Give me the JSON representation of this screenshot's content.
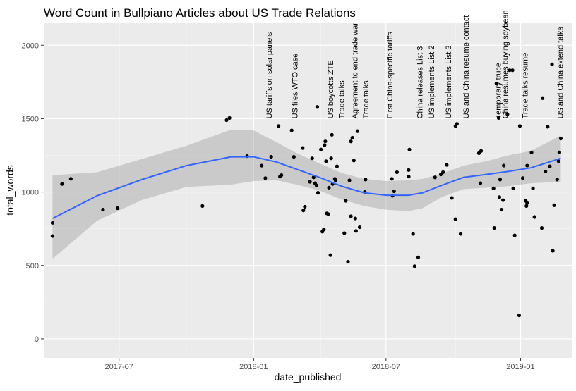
{
  "chart_data": {
    "type": "scatter",
    "title": "Word Count in Bullpiano Articles about US Trade Relations",
    "xlabel": "date_published",
    "ylabel": "total_words",
    "x_range": [
      "2017-03-20",
      "2019-03-12"
    ],
    "ylim": [
      -130,
      2150
    ],
    "x_ticks": [
      {
        "date": "2017-07-01",
        "label": "2017-07"
      },
      {
        "date": "2018-01-01",
        "label": "2018-01"
      },
      {
        "date": "2018-07-01",
        "label": "2018-07"
      },
      {
        "date": "2019-01-01",
        "label": "2019-01"
      }
    ],
    "y_ticks": [
      0,
      500,
      1000,
      1500,
      2000
    ],
    "grid": true,
    "panel_background": "#ebebeb",
    "point_color": "#000000",
    "smooth_color": "#3366ff",
    "ribbon_color": "#999999",
    "annotations": [
      {
        "date": "2018-01-22",
        "label": "US tariffs on solar panels"
      },
      {
        "date": "2018-02-26",
        "label": "US files WTO case"
      },
      {
        "date": "2018-04-16",
        "label": "US boycotts ZTE"
      },
      {
        "date": "2018-05-01",
        "label": "Trade talks"
      },
      {
        "date": "2018-05-19",
        "label": "Agreement to end trade war"
      },
      {
        "date": "2018-06-03",
        "label": "Trade talks"
      },
      {
        "date": "2018-07-06",
        "label": "First China-specific tariffs"
      },
      {
        "date": "2018-08-16",
        "label": "China releases List 3"
      },
      {
        "date": "2018-09-01",
        "label": "US implements List 2"
      },
      {
        "date": "2018-09-24",
        "label": "US implements List 3"
      },
      {
        "date": "2018-10-18",
        "label": "US and China resume contact"
      },
      {
        "date": "2018-12-01",
        "label": "Temporary truce"
      },
      {
        "date": "2018-12-11",
        "label": "China resumes buying soybean"
      },
      {
        "date": "2019-01-07",
        "label": "Trade talks resume"
      },
      {
        "date": "2019-02-24",
        "label": "US and China extend talks"
      }
    ],
    "points": [
      {
        "x": "2017-04-01",
        "y": 790
      },
      {
        "x": "2017-04-01",
        "y": 700
      },
      {
        "x": "2017-04-14",
        "y": 1055
      },
      {
        "x": "2017-04-26",
        "y": 1090
      },
      {
        "x": "2017-06-09",
        "y": 880
      },
      {
        "x": "2017-06-29",
        "y": 890
      },
      {
        "x": "2017-10-23",
        "y": 905
      },
      {
        "x": "2017-11-25",
        "y": 1490
      },
      {
        "x": "2017-11-29",
        "y": 1505
      },
      {
        "x": "2017-12-23",
        "y": 1245
      },
      {
        "x": "2018-01-12",
        "y": 1180
      },
      {
        "x": "2018-01-17",
        "y": 1095
      },
      {
        "x": "2018-01-25",
        "y": 1240
      },
      {
        "x": "2018-02-04",
        "y": 1450
      },
      {
        "x": "2018-02-06",
        "y": 1105
      },
      {
        "x": "2018-02-08",
        "y": 1115
      },
      {
        "x": "2018-02-25",
        "y": 1240
      },
      {
        "x": "2018-02-22",
        "y": 1420
      },
      {
        "x": "2018-03-10",
        "y": 875
      },
      {
        "x": "2018-03-12",
        "y": 900
      },
      {
        "x": "2018-03-09",
        "y": 1300
      },
      {
        "x": "2018-03-19",
        "y": 1070
      },
      {
        "x": "2018-03-22",
        "y": 1230
      },
      {
        "x": "2018-03-24",
        "y": 1100
      },
      {
        "x": "2018-03-26",
        "y": 1060
      },
      {
        "x": "2018-03-28",
        "y": 1045
      },
      {
        "x": "2018-03-29",
        "y": 1580
      },
      {
        "x": "2018-03-30",
        "y": 995
      },
      {
        "x": "2018-04-03",
        "y": 1290
      },
      {
        "x": "2018-04-05",
        "y": 730
      },
      {
        "x": "2018-04-07",
        "y": 745
      },
      {
        "x": "2018-04-08",
        "y": 1320
      },
      {
        "x": "2018-04-09",
        "y": 1345
      },
      {
        "x": "2018-04-10",
        "y": 1210
      },
      {
        "x": "2018-04-11",
        "y": 855
      },
      {
        "x": "2018-04-13",
        "y": 850
      },
      {
        "x": "2018-04-14",
        "y": 1030
      },
      {
        "x": "2018-04-16",
        "y": 570
      },
      {
        "x": "2018-04-17",
        "y": 1230
      },
      {
        "x": "2018-04-18",
        "y": 1390
      },
      {
        "x": "2018-04-19",
        "y": 1055
      },
      {
        "x": "2018-04-22",
        "y": 1090
      },
      {
        "x": "2018-04-23",
        "y": 1080
      },
      {
        "x": "2018-04-25",
        "y": 1175
      },
      {
        "x": "2018-05-05",
        "y": 720
      },
      {
        "x": "2018-05-07",
        "y": 940
      },
      {
        "x": "2018-05-12",
        "y": 1080
      },
      {
        "x": "2018-05-10",
        "y": 525
      },
      {
        "x": "2018-05-14",
        "y": 835
      },
      {
        "x": "2018-05-14",
        "y": 1345
      },
      {
        "x": "2018-05-16",
        "y": 1370
      },
      {
        "x": "2018-05-18",
        "y": 1215
      },
      {
        "x": "2018-05-20",
        "y": 820
      },
      {
        "x": "2018-05-21",
        "y": 735
      },
      {
        "x": "2018-05-23",
        "y": 1415
      },
      {
        "x": "2018-05-26",
        "y": 760
      },
      {
        "x": "2018-06-02",
        "y": 1000
      },
      {
        "x": "2018-06-03",
        "y": 1085
      },
      {
        "x": "2018-07-09",
        "y": 1090
      },
      {
        "x": "2018-07-10",
        "y": 975
      },
      {
        "x": "2018-07-12",
        "y": 1005
      },
      {
        "x": "2018-07-16",
        "y": 1135
      },
      {
        "x": "2018-08-01",
        "y": 1150
      },
      {
        "x": "2018-08-01",
        "y": 1105
      },
      {
        "x": "2018-08-02",
        "y": 1290
      },
      {
        "x": "2018-08-07",
        "y": 715
      },
      {
        "x": "2018-08-09",
        "y": 495
      },
      {
        "x": "2018-08-14",
        "y": 555
      },
      {
        "x": "2018-09-06",
        "y": 1100
      },
      {
        "x": "2018-09-14",
        "y": 1120
      },
      {
        "x": "2018-09-17",
        "y": 1135
      },
      {
        "x": "2018-09-22",
        "y": 1185
      },
      {
        "x": "2018-09-29",
        "y": 960
      },
      {
        "x": "2018-10-04",
        "y": 815
      },
      {
        "x": "2018-10-04",
        "y": 1450
      },
      {
        "x": "2018-10-06",
        "y": 1465
      },
      {
        "x": "2018-10-11",
        "y": 715
      },
      {
        "x": "2018-11-05",
        "y": 1265
      },
      {
        "x": "2018-11-08",
        "y": 1280
      },
      {
        "x": "2018-11-07",
        "y": 1060
      },
      {
        "x": "2018-11-25",
        "y": 1025
      },
      {
        "x": "2018-11-26",
        "y": 755
      },
      {
        "x": "2018-11-29",
        "y": 1740
      },
      {
        "x": "2018-12-02",
        "y": 1505
      },
      {
        "x": "2018-12-03",
        "y": 965
      },
      {
        "x": "2018-12-04",
        "y": 1085
      },
      {
        "x": "2018-12-06",
        "y": 880
      },
      {
        "x": "2018-12-08",
        "y": 945
      },
      {
        "x": "2018-12-09",
        "y": 1180
      },
      {
        "x": "2018-12-14",
        "y": 1530
      },
      {
        "x": "2018-12-17",
        "y": 1830
      },
      {
        "x": "2018-12-21",
        "y": 1830
      },
      {
        "x": "2018-12-22",
        "y": 1025
      },
      {
        "x": "2018-12-24",
        "y": 705
      },
      {
        "x": "2018-12-30",
        "y": 160
      },
      {
        "x": "2018-12-31",
        "y": 1450
      },
      {
        "x": "2019-01-04",
        "y": 1095
      },
      {
        "x": "2019-01-08",
        "y": 940
      },
      {
        "x": "2019-01-09",
        "y": 905
      },
      {
        "x": "2019-01-10",
        "y": 925
      },
      {
        "x": "2019-01-10",
        "y": 1180
      },
      {
        "x": "2019-01-16",
        "y": 1270
      },
      {
        "x": "2019-01-18",
        "y": 1025
      },
      {
        "x": "2019-01-20",
        "y": 830
      },
      {
        "x": "2019-01-30",
        "y": 755
      },
      {
        "x": "2019-01-31",
        "y": 1640
      },
      {
        "x": "2019-02-04",
        "y": 1140
      },
      {
        "x": "2019-02-07",
        "y": 1445
      },
      {
        "x": "2019-02-10",
        "y": 1175
      },
      {
        "x": "2019-02-13",
        "y": 1870
      },
      {
        "x": "2019-02-14",
        "y": 600
      },
      {
        "x": "2019-02-16",
        "y": 910
      },
      {
        "x": "2019-02-20",
        "y": 1085
      },
      {
        "x": "2019-02-22",
        "y": 1210
      },
      {
        "x": "2019-02-23",
        "y": 1270
      },
      {
        "x": "2019-02-25",
        "y": 1365
      }
    ],
    "smooth": {
      "x": [
        "2017-04-01",
        "2017-06-01",
        "2017-08-01",
        "2017-10-01",
        "2017-12-01",
        "2018-01-01",
        "2018-02-01",
        "2018-03-01",
        "2018-04-01",
        "2018-05-01",
        "2018-06-01",
        "2018-07-01",
        "2018-08-01",
        "2018-08-20",
        "2018-09-15",
        "2018-10-15",
        "2018-11-15",
        "2018-12-15",
        "2019-01-15",
        "2019-02-25"
      ],
      "y": [
        820,
        975,
        1085,
        1180,
        1240,
        1240,
        1205,
        1155,
        1100,
        1040,
        995,
        978,
        978,
        995,
        1045,
        1100,
        1120,
        1140,
        1165,
        1230
      ],
      "lower": [
        545,
        805,
        945,
        1035,
        1050,
        1075,
        1080,
        1050,
        1010,
        950,
        905,
        880,
        870,
        890,
        965,
        1020,
        1030,
        1040,
        1060,
        1070
      ],
      "upper": [
        1115,
        1135,
        1225,
        1315,
        1425,
        1420,
        1340,
        1265,
        1195,
        1130,
        1090,
        1075,
        1080,
        1090,
        1125,
        1180,
        1210,
        1250,
        1280,
        1385
      ]
    }
  }
}
